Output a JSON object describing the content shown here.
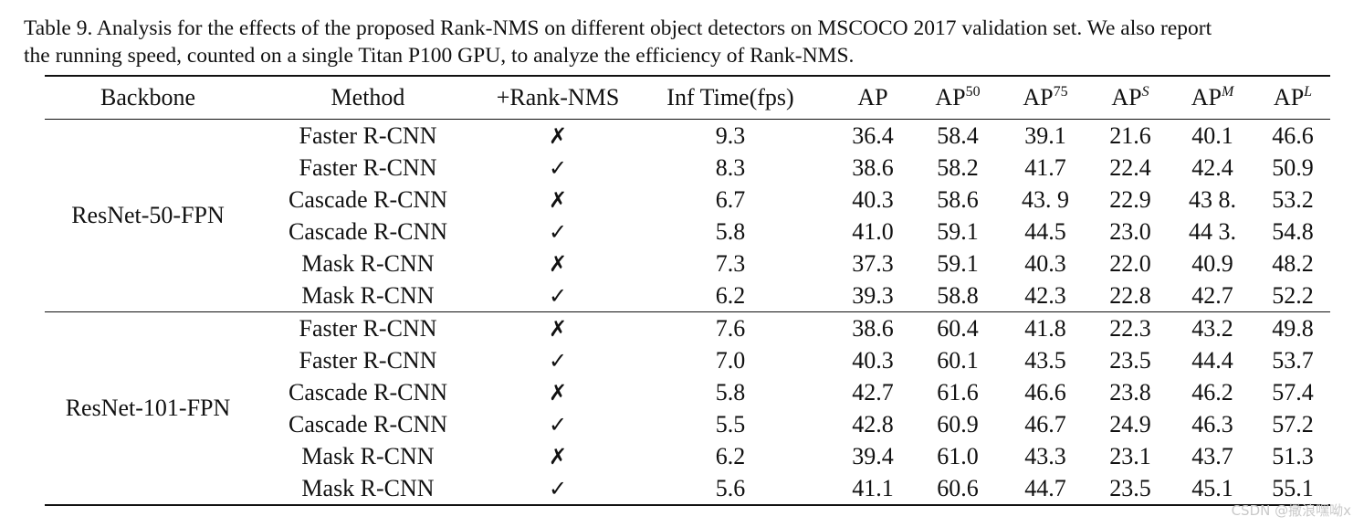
{
  "caption": {
    "line1": "Table 9. Analysis for the effects of the proposed Rank-NMS on different object detectors on MSCOCO 2017 validation set. We also report",
    "line2": "the running speed, counted on a single Titan P100 GPU, to analyze the efficiency of Rank-NMS."
  },
  "header": {
    "backbone": "Backbone",
    "method": "Method",
    "ranknms": "+Rank-NMS",
    "inftime": "Inf Time(fps)",
    "ap": "AP",
    "ap50": {
      "base": "AP",
      "sup": "50"
    },
    "ap75": {
      "base": "AP",
      "sup": "75"
    },
    "aps": {
      "base": "AP",
      "sup": "S"
    },
    "apm": {
      "base": "AP",
      "sup": "M"
    },
    "apl": {
      "base": "AP",
      "sup": "L"
    }
  },
  "groups": [
    {
      "backbone": "ResNet-50-FPN",
      "rows": [
        {
          "method": "Faster R-CNN",
          "rank": "✗",
          "fps": "9.3",
          "ap": "36.4",
          "ap50": "58.4",
          "ap75": "39.1",
          "aps": "21.6",
          "apm": "40.1",
          "apl": "46.6"
        },
        {
          "method": "Faster R-CNN",
          "rank": "✓",
          "fps": "8.3",
          "ap": "38.6",
          "ap50": "58.2",
          "ap75": "41.7",
          "aps": "22.4",
          "apm": "42.4",
          "apl": "50.9"
        },
        {
          "method": "Cascade R-CNN",
          "rank": "✗",
          "fps": "6.7",
          "ap": "40.3",
          "ap50": "58.6",
          "ap75": "43. 9",
          "aps": "22.9",
          "apm": "43 8.",
          "apl": "53.2"
        },
        {
          "method": "Cascade R-CNN",
          "rank": "✓",
          "fps": "5.8",
          "ap": "41.0",
          "ap50": "59.1",
          "ap75": "44.5",
          "aps": "23.0",
          "apm": "44 3.",
          "apl": "54.8"
        },
        {
          "method": "Mask R-CNN",
          "rank": "✗",
          "fps": "7.3",
          "ap": "37.3",
          "ap50": "59.1",
          "ap75": "40.3",
          "aps": "22.0",
          "apm": "40.9",
          "apl": "48.2"
        },
        {
          "method": "Mask R-CNN",
          "rank": "✓",
          "fps": "6.2",
          "ap": "39.3",
          "ap50": "58.8",
          "ap75": "42.3",
          "aps": "22.8",
          "apm": "42.7",
          "apl": "52.2"
        }
      ]
    },
    {
      "backbone": "ResNet-101-FPN",
      "rows": [
        {
          "method": "Faster R-CNN",
          "rank": "✗",
          "fps": "7.6",
          "ap": "38.6",
          "ap50": "60.4",
          "ap75": "41.8",
          "aps": "22.3",
          "apm": "43.2",
          "apl": "49.8"
        },
        {
          "method": "Faster R-CNN",
          "rank": "✓",
          "fps": "7.0",
          "ap": "40.3",
          "ap50": "60.1",
          "ap75": "43.5",
          "aps": "23.5",
          "apm": "44.4",
          "apl": "53.7"
        },
        {
          "method": "Cascade R-CNN",
          "rank": "✗",
          "fps": "5.8",
          "ap": "42.7",
          "ap50": "61.6",
          "ap75": "46.6",
          "aps": "23.8",
          "apm": "46.2",
          "apl": "57.4"
        },
        {
          "method": "Cascade R-CNN",
          "rank": "✓",
          "fps": "5.5",
          "ap": "42.8",
          "ap50": "60.9",
          "ap75": "46.7",
          "aps": "24.9",
          "apm": "46.3",
          "apl": "57.2"
        },
        {
          "method": "Mask R-CNN",
          "rank": "✗",
          "fps": "6.2",
          "ap": "39.4",
          "ap50": "61.0",
          "ap75": "43.3",
          "aps": "23.1",
          "apm": "43.7",
          "apl": "51.3"
        },
        {
          "method": "Mask R-CNN",
          "rank": "✓",
          "fps": "5.6",
          "ap": "41.1",
          "ap50": "60.6",
          "ap75": "44.7",
          "aps": "23.5",
          "apm": "45.1",
          "apl": "55.1"
        }
      ]
    }
  ],
  "watermark": "CSDN @撒浪嘿呦x"
}
